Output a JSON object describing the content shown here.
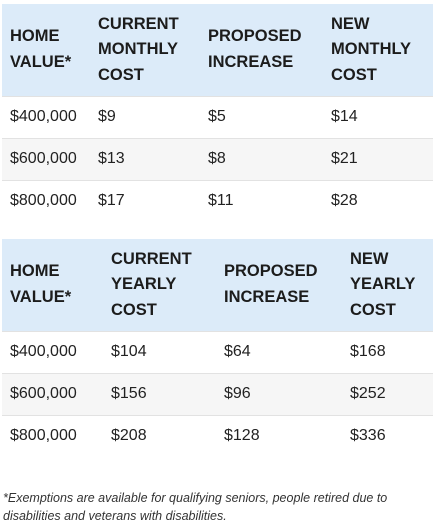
{
  "monthly_table": {
    "headers": [
      [
        "HOME",
        "VALUE*"
      ],
      [
        "CURRENT",
        "MONTHLY",
        "COST"
      ],
      [
        "PROPOSED",
        "INCREASE"
      ],
      [
        "NEW",
        "MONTHLY",
        "COST"
      ]
    ],
    "rows": [
      [
        "$400,000",
        "$9",
        "$5",
        "$14"
      ],
      [
        "$600,000",
        "$13",
        "$8",
        "$21"
      ],
      [
        "$800,000",
        "$17",
        "$11",
        "$28"
      ]
    ]
  },
  "yearly_table": {
    "headers": [
      [
        "HOME",
        "VALUE*"
      ],
      [
        "CURRENT",
        "YEARLY",
        "COST"
      ],
      [
        "PROPOSED",
        "INCREASE"
      ],
      [
        "NEW",
        "YEARLY",
        "COST"
      ]
    ],
    "rows": [
      [
        "$400,000",
        "$104",
        "$64",
        "$168"
      ],
      [
        "$600,000",
        "$156",
        "$96",
        "$252"
      ],
      [
        "$800,000",
        "$208",
        "$128",
        "$336"
      ]
    ]
  },
  "footnote": "*Exemptions are available for qualifying seniors, people retired due to disabilities and veterans with disabilities."
}
